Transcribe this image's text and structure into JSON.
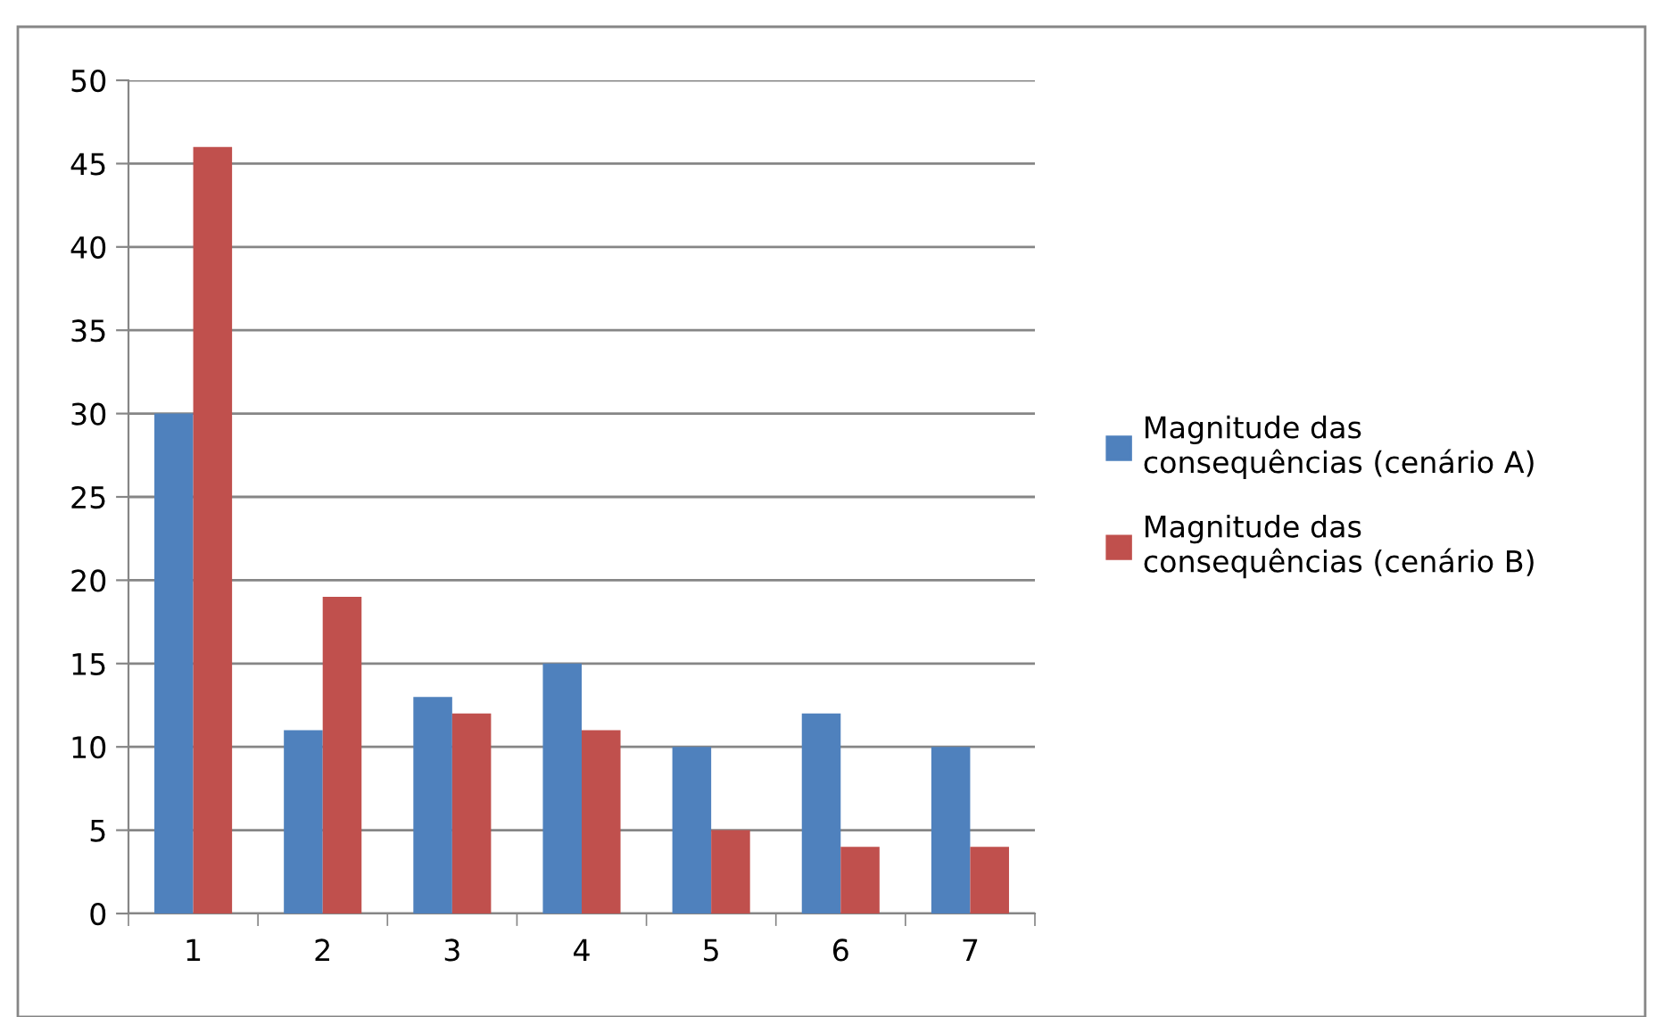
{
  "chart_data": {
    "type": "bar",
    "categories": [
      "1",
      "2",
      "3",
      "4",
      "5",
      "6",
      "7"
    ],
    "series": [
      {
        "name": "Magnitude das consequências (cenário A)",
        "color": "#4f81bd",
        "values": [
          30,
          11,
          13,
          15,
          10,
          12,
          10
        ]
      },
      {
        "name": "Magnitude das consequências (cenário B)",
        "color": "#c0504d",
        "values": [
          46,
          19,
          12,
          11,
          5,
          4,
          4
        ]
      }
    ],
    "ylim": [
      0,
      50
    ],
    "yticks": [
      0,
      5,
      10,
      15,
      20,
      25,
      30,
      35,
      40,
      45,
      50
    ],
    "grid": "y",
    "legend": "right"
  }
}
